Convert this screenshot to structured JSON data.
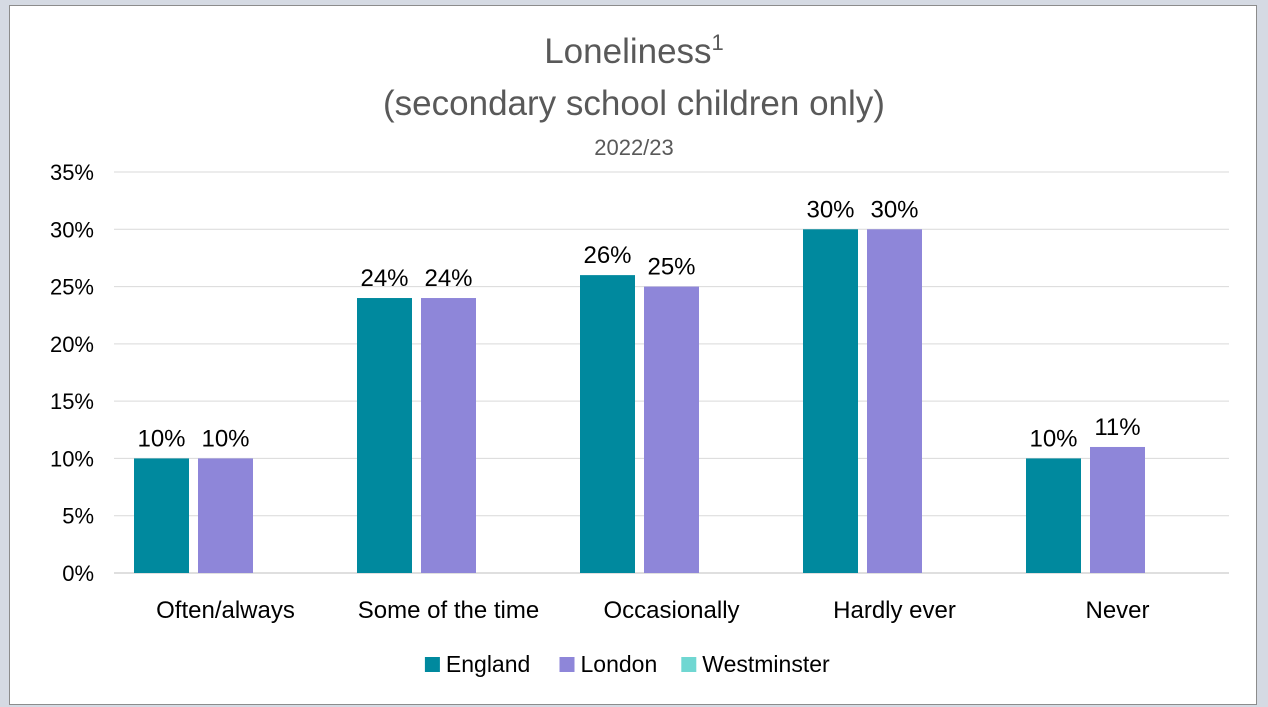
{
  "chart_data": {
    "type": "bar",
    "title": "Loneliness",
    "title_superscript": "1",
    "subtitle": "(secondary school children only)",
    "subtitle2": "2022/23",
    "categories": [
      "Often/always",
      "Some of the time",
      "Occasionally",
      "Hardly ever",
      "Never"
    ],
    "series": [
      {
        "name": "England",
        "color": "#00899e",
        "values": [
          10,
          24,
          26,
          30,
          10
        ]
      },
      {
        "name": "London",
        "color": "#8e86d9",
        "values": [
          10,
          24,
          25,
          30,
          11
        ]
      },
      {
        "name": "Westminster",
        "color": "#70d7d2",
        "values": [
          null,
          null,
          null,
          null,
          null
        ]
      }
    ],
    "value_format": "percent",
    "ylim": [
      0,
      35
    ],
    "yticks": [
      0,
      5,
      10,
      15,
      20,
      25,
      30,
      35
    ],
    "grid": true,
    "legend": "bottom"
  }
}
